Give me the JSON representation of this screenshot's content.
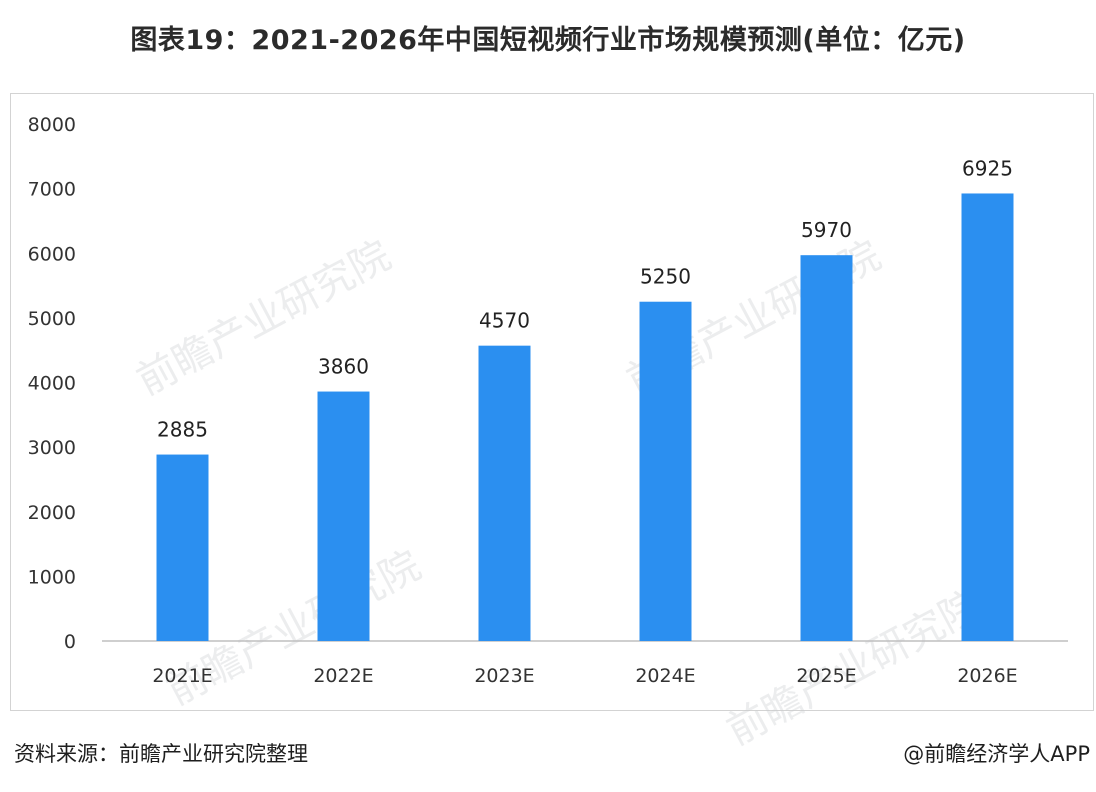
{
  "title": "图表19：2021-2026年中国短视频行业市场规模预测(单位：亿元)",
  "source": "资料来源：前瞻产业研究院整理",
  "credit": "@前瞻经济学人APP",
  "watermark_text": "前瞻产业研究院",
  "colors": {
    "bar": "#2b8ff0",
    "axis": "#bfbfbf"
  },
  "chart_data": {
    "type": "bar",
    "categories": [
      "2021E",
      "2022E",
      "2023E",
      "2024E",
      "2025E",
      "2026E"
    ],
    "values": [
      2885,
      3860,
      4570,
      5250,
      5970,
      6925
    ],
    "yticks": [
      "0",
      "1000",
      "2000",
      "3000",
      "4000",
      "5000",
      "6000",
      "7000",
      "8000"
    ],
    "ylim": [
      0,
      8000
    ],
    "grid": false,
    "legend": "none"
  }
}
